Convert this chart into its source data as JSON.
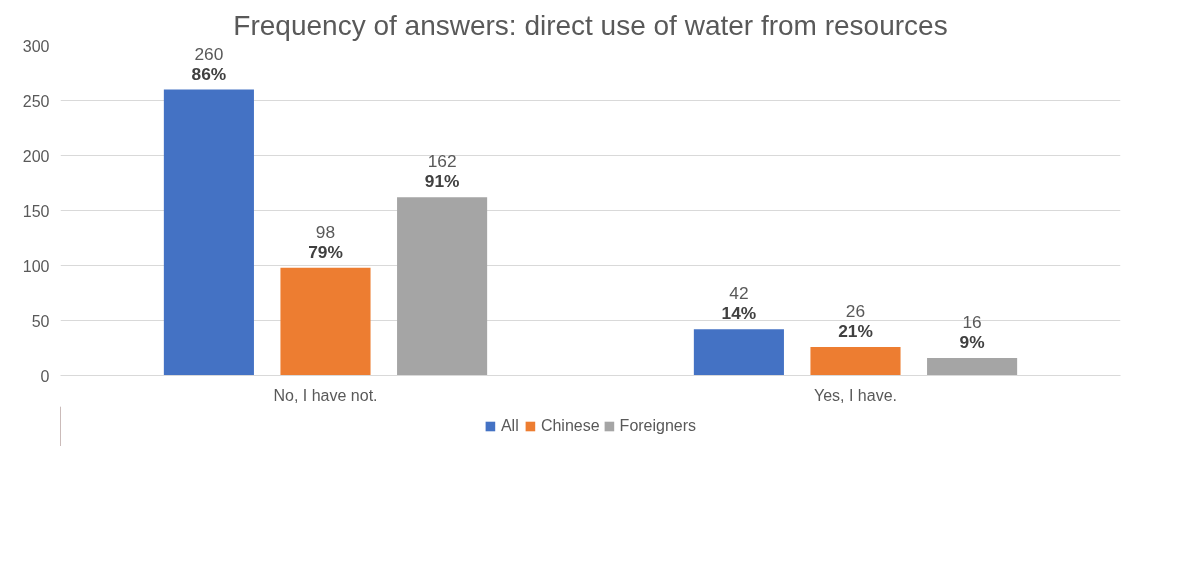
{
  "chart_data": {
    "type": "bar",
    "title": "Frequency of answers: direct use of water from resources",
    "categories": [
      "No, I have not.",
      "Yes, I have."
    ],
    "series": [
      {
        "name": "All",
        "color": "#4472c4",
        "values": [
          260,
          42
        ],
        "value_labels": [
          "260\n86%",
          "42\n14%"
        ]
      },
      {
        "name": "Chinese",
        "color": "#ed7d31",
        "values": [
          98,
          26
        ],
        "value_labels": [
          "98\n79%",
          "26\n21%"
        ]
      },
      {
        "name": "Foreigners",
        "color": "#a5a5a5",
        "values": [
          162,
          16
        ],
        "value_labels": [
          "162\n91%",
          "16\n9%"
        ]
      }
    ],
    "ylim": [
      0,
      300
    ],
    "yticks": [
      0,
      50,
      100,
      150,
      200,
      250,
      300
    ],
    "grid": "y",
    "legend": "bottom"
  }
}
